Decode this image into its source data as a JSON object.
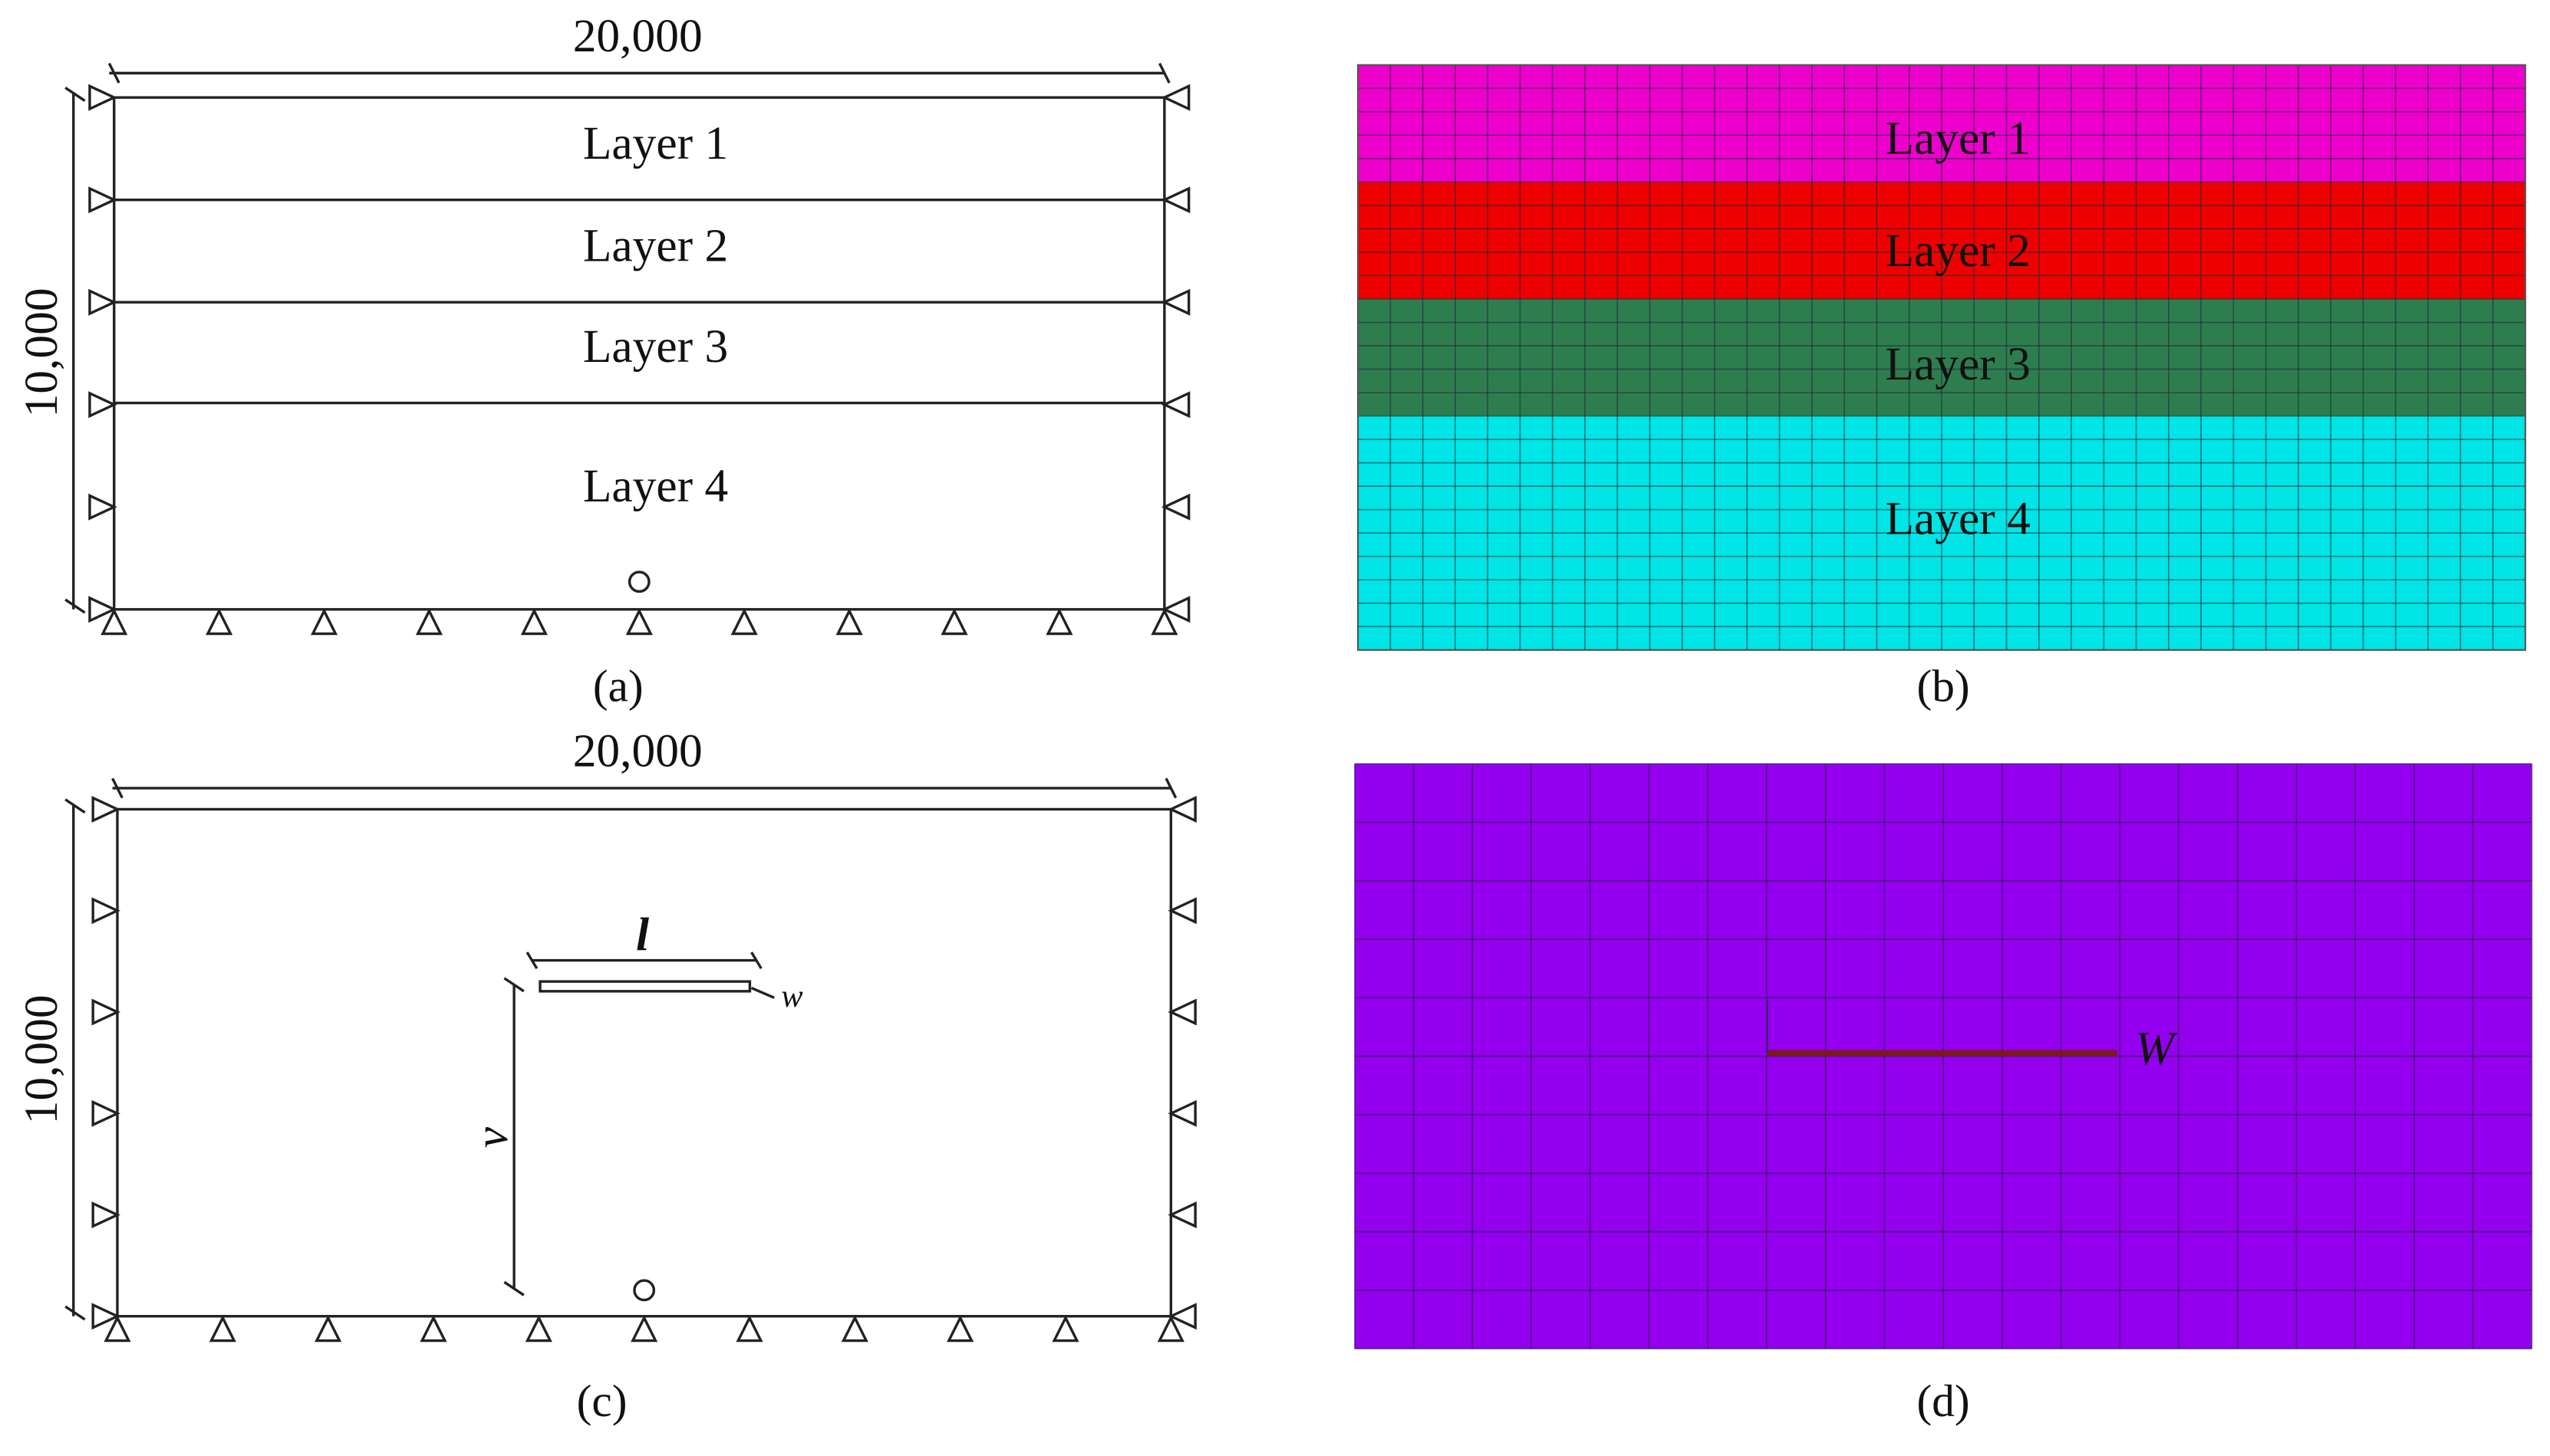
{
  "panels": [
    {
      "caption": "(a)",
      "width_label": "20,000",
      "height_label": "10,000",
      "layers": [
        "Layer 1",
        "Layer 2",
        "Layer 3",
        "Layer 4"
      ]
    },
    {
      "caption": "(b)",
      "layers": [
        "Layer 1",
        "Layer 2",
        "Layer 3",
        "Layer 4"
      ]
    },
    {
      "caption": "(c)",
      "width_label": "20,000",
      "height_label": "10,000",
      "length_label": "l",
      "depth_label": "v",
      "width_symbol": "w"
    },
    {
      "caption": "(d)",
      "width_symbol": "W"
    }
  ]
}
